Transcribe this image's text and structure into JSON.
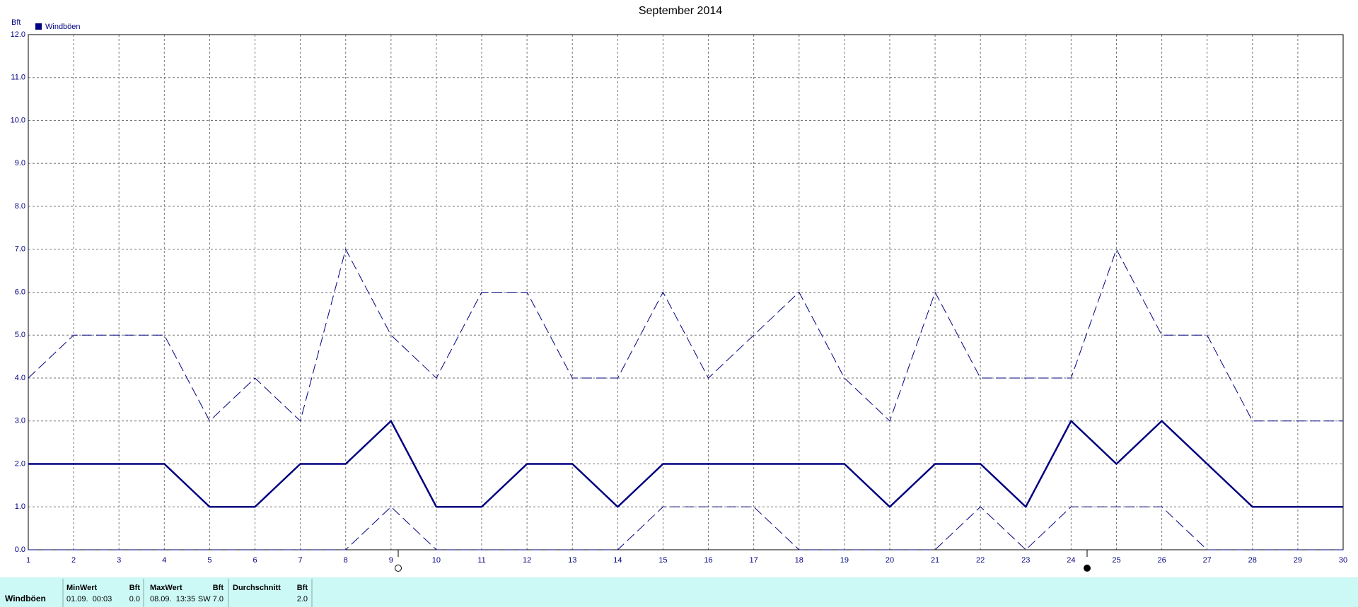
{
  "chart_data": {
    "type": "line",
    "title": "September 2014",
    "y_label": "Bft",
    "x": [
      1,
      2,
      3,
      4,
      5,
      6,
      7,
      8,
      9,
      10,
      11,
      12,
      13,
      14,
      15,
      16,
      17,
      18,
      19,
      20,
      21,
      22,
      23,
      24,
      25,
      26,
      27,
      28,
      29,
      30
    ],
    "xlim": [
      1,
      30
    ],
    "xticks": [
      1,
      2,
      3,
      4,
      5,
      6,
      7,
      8,
      9,
      10,
      11,
      12,
      13,
      14,
      15,
      16,
      17,
      18,
      19,
      20,
      21,
      22,
      23,
      24,
      25,
      26,
      27,
      28,
      29,
      30
    ],
    "ylim": [
      0,
      12
    ],
    "yticks": [
      {
        "value": 0,
        "label": "0.0"
      },
      {
        "value": 1,
        "label": "1.0"
      },
      {
        "value": 2,
        "label": "2.0"
      },
      {
        "value": 3,
        "label": "3.0"
      },
      {
        "value": 4,
        "label": "4.0"
      },
      {
        "value": 5,
        "label": "5.0"
      },
      {
        "value": 6,
        "label": "6.0"
      },
      {
        "value": 7,
        "label": "7.0"
      },
      {
        "value": 8,
        "label": "8.0"
      },
      {
        "value": 9,
        "label": "9.0"
      },
      {
        "value": 10,
        "label": "10.0"
      },
      {
        "value": 11,
        "label": "11.0"
      },
      {
        "value": 12,
        "label": "12.0"
      }
    ],
    "grid": true,
    "legend": "top-left",
    "series": [
      {
        "name": "Windböen",
        "color": "#000080",
        "style": "solid",
        "values": [
          2,
          2,
          2,
          2,
          1,
          1,
          2,
          2,
          3,
          1,
          1,
          2,
          2,
          1,
          2,
          2,
          2,
          2,
          2,
          1,
          2,
          2,
          1,
          3,
          2,
          3,
          2,
          1,
          1,
          1
        ]
      },
      {
        "color": "#000080",
        "style": "dashed",
        "values": [
          4,
          5,
          5,
          5,
          3,
          4,
          3,
          7,
          5,
          4,
          6,
          6,
          4,
          4,
          6,
          4,
          5,
          6,
          4,
          3,
          6,
          4,
          4,
          4,
          7,
          5,
          5,
          3,
          3,
          3
        ]
      },
      {
        "color": "#000080",
        "style": "dashed",
        "values": [
          0,
          0,
          0,
          0,
          0,
          0,
          0,
          0,
          1,
          0,
          0,
          0,
          0,
          0,
          1,
          1,
          1,
          0,
          0,
          0,
          0,
          1,
          0,
          1,
          1,
          1,
          0,
          0,
          0,
          0
        ]
      }
    ]
  },
  "stats": {
    "row_label": "Windböen",
    "headers": [
      "MinWert",
      "Bft",
      "MaxWert",
      "Bft",
      "Durchschnitt",
      "Bft"
    ],
    "values": [
      "01.09.  00:03",
      "0.0",
      "08.09.  13:35",
      "SW 7.0",
      "2.0"
    ]
  }
}
